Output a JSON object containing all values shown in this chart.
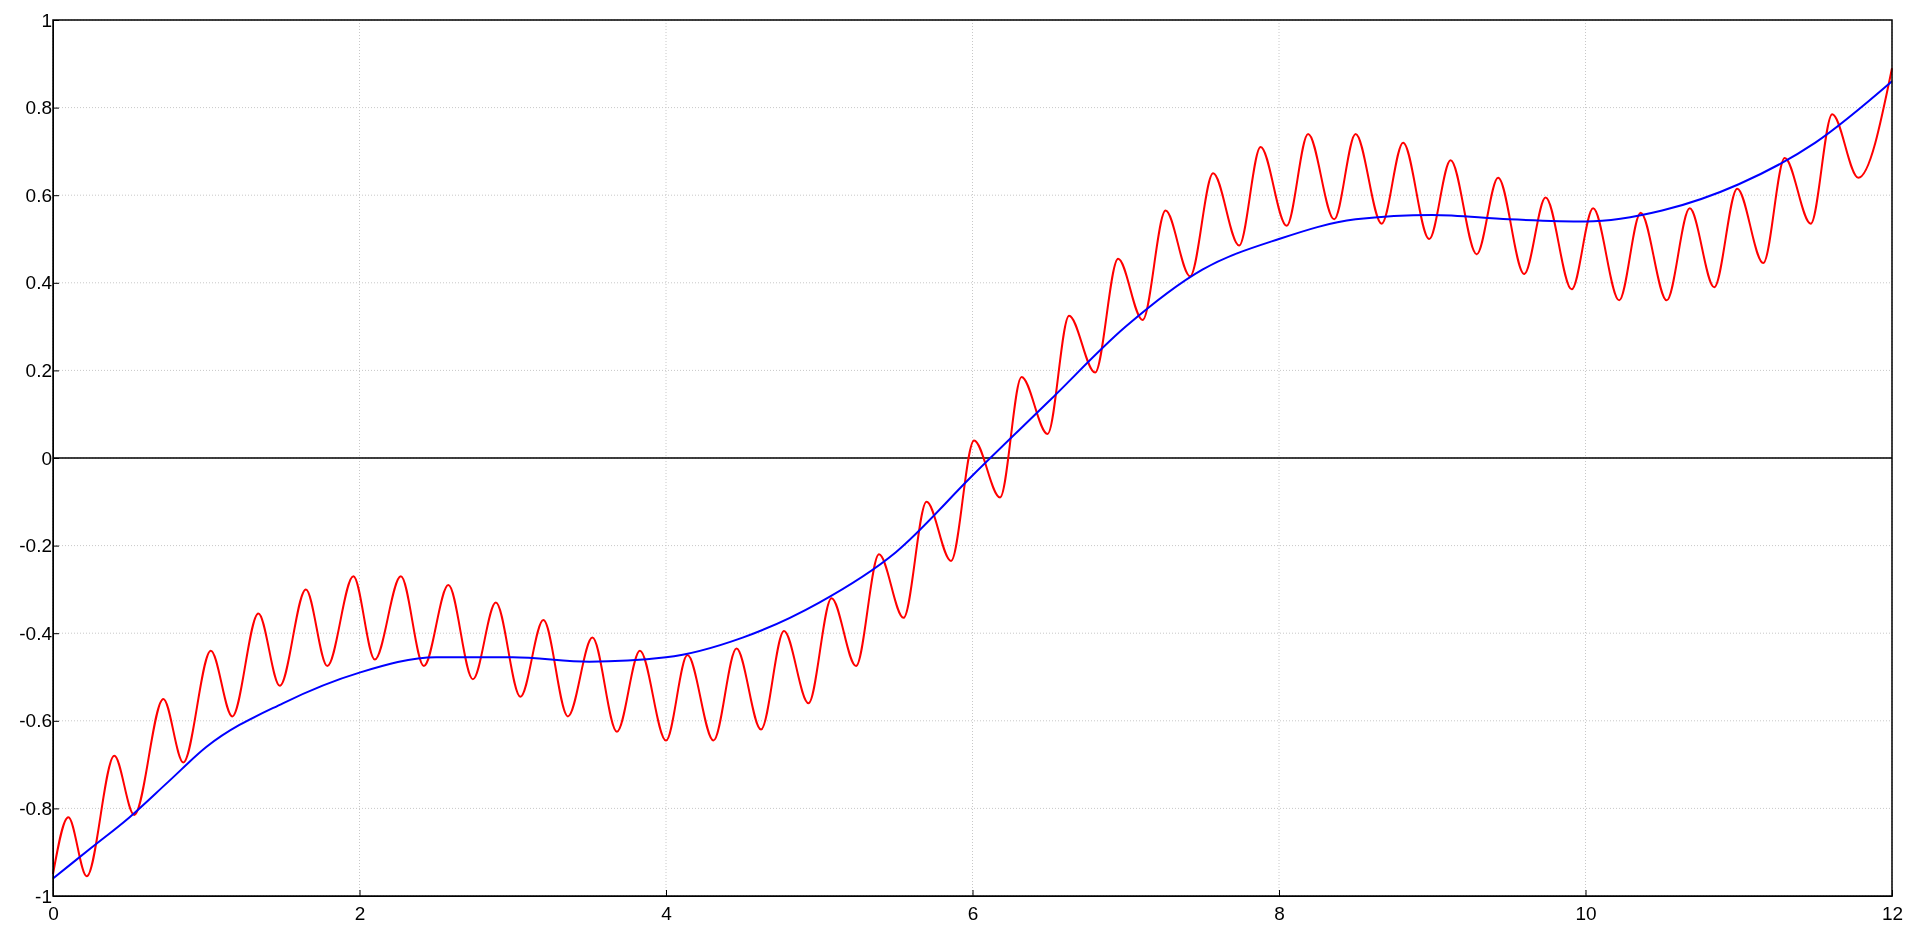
{
  "chart_data": {
    "type": "line",
    "xlim": [
      0,
      12
    ],
    "ylim": [
      -1,
      1
    ],
    "xticks": [
      0,
      2,
      4,
      6,
      8,
      10,
      12
    ],
    "yticks": [
      -1,
      -0.8,
      -0.6,
      -0.4,
      -0.2,
      0,
      0.2,
      0.4,
      0.6,
      0.8,
      1
    ],
    "grid": true,
    "line_style": "solid",
    "marker": "none",
    "ref_lines": [
      {
        "axis": "y",
        "value": 0,
        "color": "#000000"
      }
    ],
    "series": [
      {
        "color": "#ff0000",
        "x": [
          0,
          0.1,
          0.22,
          0.4,
          0.53,
          0.72,
          0.85,
          1.03,
          1.17,
          1.34,
          1.48,
          1.65,
          1.79,
          1.96,
          2.1,
          2.27,
          2.42,
          2.58,
          2.74,
          2.89,
          3.05,
          3.2,
          3.36,
          3.52,
          3.68,
          3.83,
          4.0,
          4.14,
          4.31,
          4.46,
          4.62,
          4.77,
          4.93,
          5.08,
          5.24,
          5.39,
          5.55,
          5.7,
          5.86,
          6.01,
          6.18,
          6.32,
          6.49,
          6.63,
          6.8,
          6.95,
          7.11,
          7.26,
          7.42,
          7.57,
          7.74,
          7.88,
          8.05,
          8.19,
          8.36,
          8.5,
          8.67,
          8.81,
          8.98,
          9.12,
          9.29,
          9.43,
          9.6,
          9.74,
          9.91,
          10.05,
          10.22,
          10.36,
          10.53,
          10.68,
          10.84,
          10.99,
          11.16,
          11.3,
          11.47,
          11.61,
          11.78,
          12
        ],
        "values": [
          -0.95,
          -0.82,
          -0.955,
          -0.68,
          -0.815,
          -0.55,
          -0.695,
          -0.44,
          -0.59,
          -0.355,
          -0.52,
          -0.3,
          -0.475,
          -0.27,
          -0.46,
          -0.27,
          -0.475,
          -0.29,
          -0.505,
          -0.33,
          -0.545,
          -0.37,
          -0.59,
          -0.41,
          -0.625,
          -0.44,
          -0.645,
          -0.45,
          -0.645,
          -0.435,
          -0.62,
          -0.395,
          -0.56,
          -0.32,
          -0.475,
          -0.22,
          -0.365,
          -0.1,
          -0.235,
          0.04,
          -0.09,
          0.185,
          0.055,
          0.325,
          0.195,
          0.455,
          0.315,
          0.565,
          0.415,
          0.65,
          0.485,
          0.71,
          0.53,
          0.74,
          0.545,
          0.74,
          0.535,
          0.72,
          0.5,
          0.68,
          0.465,
          0.64,
          0.42,
          0.595,
          0.385,
          0.57,
          0.36,
          0.56,
          0.36,
          0.57,
          0.39,
          0.615,
          0.445,
          0.685,
          0.535,
          0.785,
          0.64,
          0.89
        ]
      },
      {
        "color": "#0000ff",
        "x": [
          0,
          0.25,
          0.5,
          0.75,
          1,
          1.5,
          2,
          2.5,
          3,
          3.5,
          4,
          4.5,
          5,
          5.5,
          6,
          6.5,
          7,
          7.5,
          8,
          8.5,
          9,
          9.5,
          10,
          10.5,
          11,
          11.5,
          12
        ],
        "values": [
          -0.96,
          -0.89,
          -0.82,
          -0.74,
          -0.66,
          -0.56,
          -0.49,
          -0.455,
          -0.455,
          -0.465,
          -0.455,
          -0.41,
          -0.33,
          -0.215,
          -0.04,
          0.13,
          0.3,
          0.43,
          0.5,
          0.545,
          0.555,
          0.545,
          0.54,
          0.565,
          0.625,
          0.72,
          0.86
        ]
      }
    ]
  }
}
